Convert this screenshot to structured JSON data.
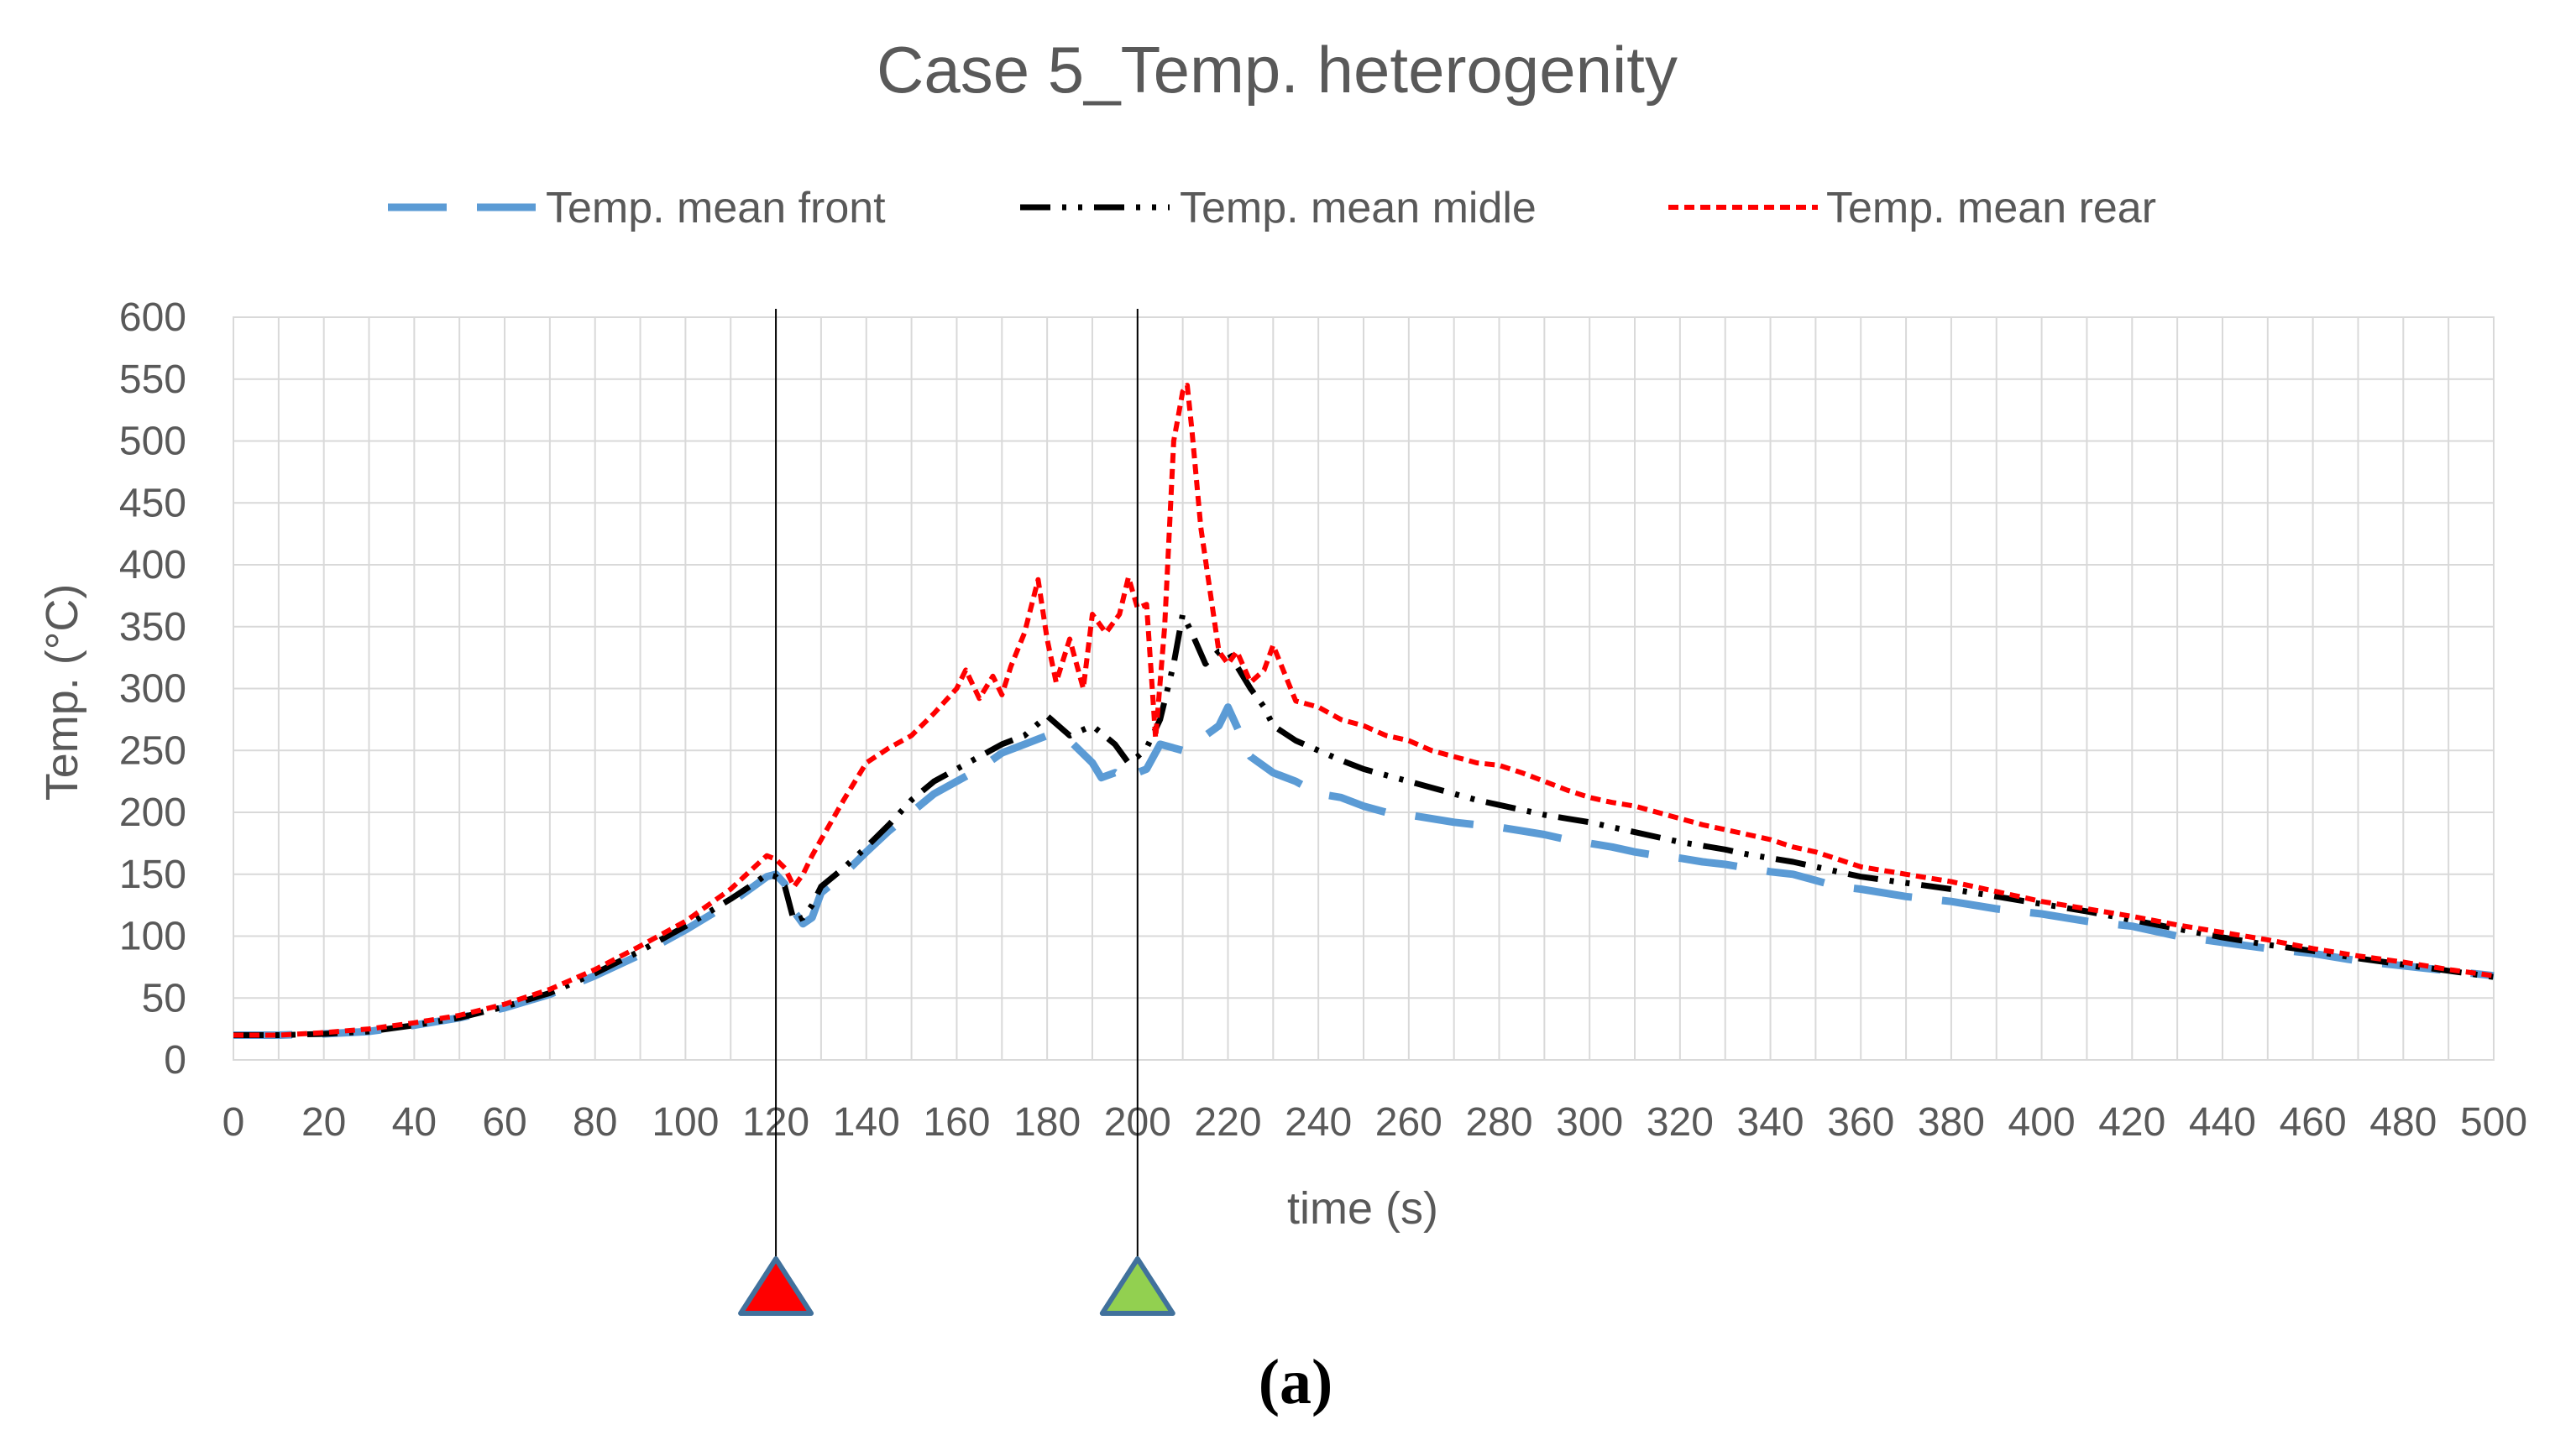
{
  "chart_data": {
    "type": "line",
    "title": "Case 5_Temp. heterogenity",
    "xlabel": "time (s)",
    "ylabel": "Temp. (°C)",
    "xlim": [
      0,
      500
    ],
    "ylim": [
      0,
      600
    ],
    "x_ticks": [
      "0",
      "20",
      "40",
      "60",
      "80",
      "100",
      "120",
      "140",
      "160",
      "180",
      "200",
      "220",
      "240",
      "260",
      "280",
      "300",
      "320",
      "340",
      "360",
      "380",
      "400",
      "420",
      "440",
      "460",
      "480",
      "500"
    ],
    "y_ticks": [
      "0",
      "50",
      "100",
      "150",
      "200",
      "250",
      "300",
      "350",
      "400",
      "450",
      "500",
      "550",
      "600"
    ],
    "grid": true,
    "legend_position": "top",
    "caption": "(a)",
    "markers": [
      {
        "x": 120,
        "shape": "triangle",
        "color": "#ff0000"
      },
      {
        "x": 200,
        "shape": "triangle",
        "color": "#92d050"
      }
    ],
    "series": [
      {
        "name": "Temp. mean front",
        "color": "#5b9bd5",
        "style": "long-dash",
        "x": [
          0,
          10,
          20,
          30,
          40,
          50,
          60,
          70,
          80,
          90,
          100,
          110,
          115,
          118,
          120,
          122,
          124,
          126,
          128,
          130,
          135,
          140,
          145,
          150,
          155,
          160,
          165,
          170,
          175,
          180,
          185,
          190,
          192,
          195,
          198,
          200,
          202,
          205,
          208,
          210,
          215,
          218,
          220,
          225,
          230,
          235,
          240,
          245,
          250,
          255,
          260,
          265,
          270,
          275,
          280,
          285,
          290,
          295,
          300,
          305,
          310,
          315,
          320,
          325,
          330,
          335,
          340,
          345,
          350,
          355,
          360,
          370,
          380,
          390,
          400,
          410,
          420,
          430,
          440,
          450,
          460,
          470,
          480,
          490,
          500
        ],
        "y": [
          20,
          20,
          21,
          23,
          28,
          34,
          42,
          53,
          68,
          85,
          105,
          127,
          140,
          148,
          150,
          142,
          120,
          110,
          115,
          135,
          150,
          168,
          185,
          200,
          215,
          225,
          235,
          248,
          255,
          262,
          258,
          240,
          228,
          232,
          225,
          232,
          235,
          255,
          252,
          250,
          262,
          270,
          285,
          245,
          232,
          225,
          215,
          212,
          205,
          200,
          198,
          195,
          192,
          190,
          188,
          185,
          182,
          178,
          175,
          172,
          168,
          165,
          163,
          160,
          158,
          155,
          152,
          150,
          145,
          140,
          138,
          132,
          128,
          122,
          118,
          112,
          108,
          100,
          95,
          90,
          86,
          80,
          76,
          72,
          68
        ]
      },
      {
        "name": "Temp. mean midle",
        "color": "#000000",
        "style": "dash-dot-dot",
        "x": [
          0,
          10,
          20,
          30,
          40,
          50,
          60,
          70,
          80,
          90,
          100,
          110,
          115,
          118,
          120,
          122,
          124,
          126,
          128,
          130,
          135,
          140,
          145,
          150,
          155,
          160,
          165,
          170,
          175,
          180,
          185,
          190,
          195,
          198,
          200,
          202,
          205,
          208,
          210,
          212,
          215,
          218,
          220,
          225,
          228,
          230,
          235,
          240,
          245,
          250,
          255,
          260,
          265,
          270,
          275,
          280,
          285,
          290,
          295,
          300,
          305,
          310,
          315,
          320,
          325,
          330,
          335,
          340,
          345,
          350,
          355,
          360,
          370,
          380,
          390,
          400,
          410,
          420,
          430,
          440,
          450,
          460,
          470,
          480,
          490,
          500
        ],
        "y": [
          20,
          20,
          21,
          23,
          28,
          34,
          43,
          54,
          70,
          88,
          108,
          130,
          142,
          150,
          148,
          140,
          112,
          115,
          125,
          140,
          155,
          172,
          190,
          210,
          225,
          235,
          245,
          255,
          262,
          278,
          262,
          270,
          255,
          240,
          245,
          252,
          275,
          320,
          360,
          345,
          320,
          330,
          330,
          300,
          285,
          270,
          258,
          250,
          242,
          235,
          230,
          225,
          220,
          215,
          210,
          206,
          202,
          198,
          195,
          192,
          188,
          184,
          180,
          176,
          173,
          170,
          166,
          163,
          160,
          156,
          152,
          148,
          143,
          138,
          132,
          126,
          120,
          113,
          106,
          99,
          93,
          88,
          82,
          77,
          72,
          67
        ]
      },
      {
        "name": "Temp. mean rear",
        "color": "#ff0000",
        "style": "short-dash",
        "x": [
          0,
          10,
          20,
          30,
          40,
          50,
          60,
          70,
          80,
          90,
          100,
          110,
          115,
          118,
          120,
          122,
          124,
          126,
          128,
          130,
          135,
          140,
          145,
          150,
          155,
          160,
          162,
          165,
          168,
          170,
          172,
          175,
          178,
          180,
          182,
          185,
          188,
          190,
          193,
          196,
          198,
          200,
          202,
          204,
          206,
          208,
          209,
          210,
          211,
          212,
          214,
          216,
          218,
          220,
          222,
          225,
          228,
          230,
          235,
          240,
          245,
          250,
          255,
          260,
          265,
          270,
          275,
          280,
          285,
          290,
          295,
          300,
          305,
          310,
          315,
          320,
          325,
          330,
          335,
          340,
          345,
          350,
          355,
          360,
          370,
          380,
          390,
          400,
          410,
          420,
          430,
          440,
          450,
          460,
          470,
          480,
          490,
          500
        ],
        "y": [
          20,
          20,
          22,
          25,
          30,
          36,
          45,
          57,
          73,
          92,
          112,
          138,
          155,
          165,
          162,
          155,
          140,
          150,
          165,
          178,
          210,
          240,
          252,
          262,
          280,
          300,
          315,
          292,
          310,
          295,
          318,
          345,
          388,
          340,
          305,
          340,
          300,
          360,
          345,
          360,
          390,
          365,
          368,
          260,
          350,
          500,
          520,
          540,
          545,
          510,
          430,
          380,
          330,
          320,
          330,
          305,
          315,
          335,
          290,
          285,
          275,
          270,
          262,
          258,
          250,
          245,
          240,
          238,
          232,
          225,
          218,
          212,
          208,
          205,
          200,
          195,
          190,
          186,
          182,
          178,
          172,
          168,
          162,
          156,
          150,
          144,
          136,
          128,
          122,
          116,
          109,
          103,
          97,
          90,
          84,
          79,
          73,
          68
        ]
      }
    ]
  }
}
